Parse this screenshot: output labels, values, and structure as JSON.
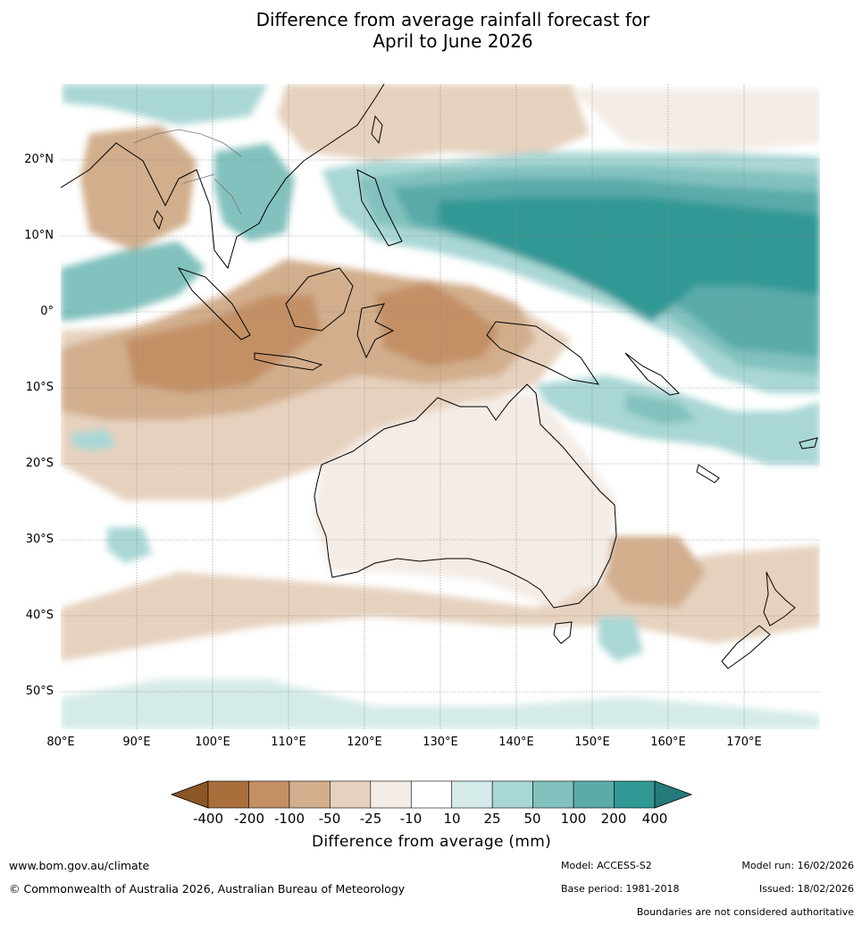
{
  "title": {
    "line1": "Difference from average rainfall forecast for",
    "line2": "April to June 2026"
  },
  "map": {
    "latitude_labels": [
      "20°N",
      "10°N",
      "0°",
      "10°S",
      "20°S",
      "30°S",
      "40°S",
      "50°S"
    ],
    "longitude_labels": [
      "80°E",
      "90°E",
      "100°E",
      "110°E",
      "120°E",
      "130°E",
      "140°E",
      "150°E",
      "160°E",
      "170°E"
    ],
    "extent": {
      "lon_min": 80,
      "lon_max": 180,
      "lat_min": -55,
      "lat_max": 30
    },
    "regions": [
      {
        "area": "Western Pacific north of New Guinea",
        "category": "200 to 400"
      },
      {
        "area": "South China Sea / Philippines",
        "category": "50 to 200"
      },
      {
        "area": "Indonesia / Java / Timor",
        "category": "-200 to -100"
      },
      {
        "area": "Eastern Indian Ocean",
        "category": "-200 to -100"
      },
      {
        "area": "Australian interior",
        "category": "-25 to -10"
      },
      {
        "area": "Coral Sea",
        "category": "25 to 100"
      },
      {
        "area": "Tasman Sea",
        "category": "-100 to -50"
      }
    ]
  },
  "colorbar": {
    "labels": [
      "-400",
      "-200",
      "-100",
      "-50",
      "-25",
      "-10",
      "10",
      "25",
      "50",
      "100",
      "200",
      "400"
    ],
    "colors": [
      "#a86f3d",
      "#c39066",
      "#d2ae8c",
      "#e6d1be",
      "#f4ece6",
      "#ffffff",
      "#d5ebe9",
      "#a9d7d5",
      "#82c1be",
      "#5aabaa",
      "#319895"
    ],
    "low_extend_color": "#8c5626",
    "high_extend_color": "#257a7c",
    "title": "Difference from average (mm)"
  },
  "footer": {
    "website": "www.bom.gov.au/climate",
    "copyright": "© Commonwealth of Australia 2026, Australian Bureau of Meteorology",
    "model": "Model: ACCESS-S2",
    "base_period": "Base period: 1981-2018",
    "model_run": "Model run: 16/02/2026",
    "issued": "Issued: 18/02/2026",
    "disclaimer": "Boundaries are not considered authoritative"
  }
}
